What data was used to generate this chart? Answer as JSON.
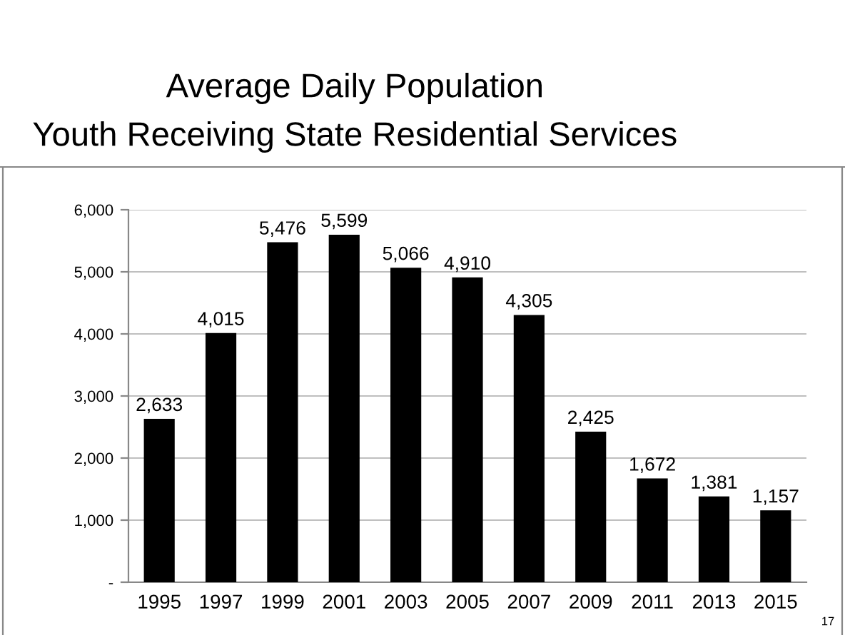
{
  "chart_data": {
    "type": "bar",
    "title": "Average Daily Population",
    "subtitle": "Youth Receiving State Residential Services",
    "categories": [
      "1995",
      "1997",
      "1999",
      "2001",
      "2003",
      "2005",
      "2007",
      "2009",
      "2011",
      "2013",
      "2015"
    ],
    "values": [
      2633,
      4015,
      5476,
      5599,
      5066,
      4910,
      4305,
      2425,
      1672,
      1381,
      1157
    ],
    "value_labels": [
      "2,633",
      "4,015",
      "5,476",
      "5,599",
      "5,066",
      "4,910",
      "4,305",
      "2,425",
      "1,672",
      "1,381",
      "1,157"
    ],
    "color": "#000000",
    "ylim": [
      0,
      6000
    ],
    "yticks": [
      {
        "value": 0,
        "label": "-"
      },
      {
        "value": 1000,
        "label": "1,000"
      },
      {
        "value": 2000,
        "label": "2,000"
      },
      {
        "value": 3000,
        "label": "3,000"
      },
      {
        "value": 4000,
        "label": "4,000"
      },
      {
        "value": 5000,
        "label": "5,000"
      },
      {
        "value": 6000,
        "label": "6,000"
      }
    ],
    "grid": "y",
    "annotations": [
      "17"
    ]
  }
}
